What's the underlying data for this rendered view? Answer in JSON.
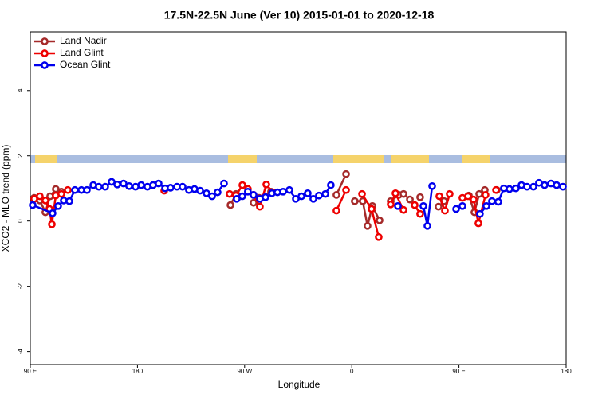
{
  "chart_data": {
    "type": "line",
    "title": "17.5N-22.5N June (Ver 10)   2015-01-01 to 2020-12-18",
    "x_label": "Longitude",
    "y_label": "XCO2 - MLO trend (ppm)",
    "xlim": [
      90,
      540
    ],
    "xticks": [
      {
        "value": 90,
        "label": "90 E"
      },
      180,
      {
        "value": 270,
        "label": "90 W"
      },
      {
        "value": 360,
        "label": "0"
      },
      {
        "value": 450,
        "label": "90 E"
      },
      {
        "value": 540,
        "label": "180"
      }
    ],
    "ylim": [
      -4.4,
      5.8
    ],
    "yticks": [
      -4,
      -2,
      0,
      2,
      4
    ],
    "legend": "top-left",
    "series": [
      {
        "name": "Land Nadir",
        "color": "#a52a2a",
        "x": [
          93.3,
          98.0,
          102.7,
          106.7,
          111.4,
          116.1,
          165,
          258.1,
          262.8,
          272,
          277.5,
          282.2,
          292.2,
          319,
          347.1,
          355.2,
          359.2,
          362.5,
          369.2,
          373.2,
          377.3,
          383.3,
          388,
          392.7,
          399.4,
          403.4,
          408.8,
          412.8,
          417.4,
          426,
          432.8,
          437.5,
          450,
          458.3,
          463.0,
          467.0,
          471.7,
          476,
          481.7
        ],
        "values": [
          0.71,
          0.63,
          0.27,
          0.76,
          0.98,
          0.9,
          null,
          0.49,
          0.83,
          null,
          0.56,
          0.71,
          0.9,
          null,
          0.8,
          1.44,
          null,
          0.61,
          0.61,
          -0.15,
          0.46,
          0.02,
          null,
          0.61,
          0.8,
          0.83,
          0.66,
          null,
          0.73,
          null,
          0.44,
          0.61,
          null,
          0.78,
          0.27,
          0.83,
          0.95,
          null,
          0.95
        ]
      },
      {
        "name": "Land Glint",
        "color": "#ee0000",
        "x": [
          93.3,
          98.0,
          102.7,
          106.1,
          108.1,
          111.4,
          116.1,
          121.5,
          131.5,
          202.5,
          225.3,
          257.4,
          262.8,
          268.1,
          272.8,
          277.5,
          282.8,
          288.2,
          293.6,
          319.0,
          347.1,
          355.2,
          362.5,
          368.6,
          376.6,
          382.6,
          388.0,
          392.7,
          396.7,
          403.4,
          408.1,
          412.8,
          417.4,
          426.1,
          433.5,
          438.2,
          442.2,
          447.6,
          452.9,
          457.6,
          462.3,
          466.3,
          472.3,
          476.4,
          481.1
        ],
        "values": [
          0.68,
          0.76,
          0.63,
          0.37,
          -0.1,
          0.78,
          0.83,
          0.95,
          null,
          0.93,
          null,
          0.83,
          0.78,
          1.1,
          0.98,
          0.8,
          0.44,
          1.12,
          0.88,
          null,
          0.32,
          0.95,
          null,
          0.83,
          0.37,
          -0.49,
          null,
          0.51,
          0.85,
          0.34,
          null,
          0.49,
          0.22,
          null,
          0.76,
          0.32,
          0.83,
          null,
          0.71,
          0.76,
          0.66,
          -0.07,
          0.8,
          null,
          0.95
        ]
      },
      {
        "name": "Ocean Glint",
        "color": "#0000ee",
        "x": [
          92.0,
          108.7,
          113.4,
          118.1,
          122.8,
          127.5,
          132.9,
          137.5,
          142.9,
          147.6,
          152.9,
          158.3,
          163.0,
          168.3,
          173.0,
          178.4,
          183.1,
          188.4,
          193.1,
          197.8,
          203.2,
          207.8,
          213.2,
          217.9,
          223.2,
          227.9,
          232.6,
          238.0,
          242.7,
          247.3,
          252.7,
          258.0,
          263.4,
          268.0,
          272.7,
          277.5,
          282.8,
          287.5,
          292.9,
          297.6,
          302.3,
          307.6,
          313.0,
          317.7,
          323.0,
          327.7,
          332.4,
          337.8,
          342.4,
          365.9,
          398.7,
          409.4,
          420.1,
          423.5,
          427.5,
          439.5,
          447.6,
          452.9,
          459.6,
          467.6,
          473.0,
          477.7,
          483.0,
          487.7,
          492.4,
          497.8,
          502.5,
          507.2,
          512.5,
          517.2,
          521.9,
          527.3,
          532.0,
          537.3
        ],
        "values": [
          0.49,
          0.24,
          0.46,
          0.63,
          0.61,
          0.95,
          0.95,
          0.95,
          1.1,
          1.05,
          1.05,
          1.2,
          1.12,
          1.15,
          1.07,
          1.05,
          1.1,
          1.05,
          1.1,
          1.15,
          1.0,
          1.02,
          1.05,
          1.05,
          0.95,
          0.98,
          0.93,
          0.85,
          0.76,
          0.88,
          1.15,
          null,
          0.68,
          0.76,
          0.9,
          0.8,
          0.68,
          0.73,
          0.85,
          0.88,
          0.9,
          0.95,
          0.68,
          0.76,
          0.85,
          0.68,
          0.78,
          0.83,
          1.1,
          null,
          0.46,
          null,
          0.46,
          -0.15,
          1.07,
          null,
          0.37,
          0.46,
          null,
          0.22,
          0.46,
          0.61,
          0.59,
          1.0,
          0.98,
          1.0,
          1.1,
          1.05,
          1.05,
          1.17,
          1.1,
          1.15,
          1.1,
          1.05
        ]
      }
    ]
  }
}
